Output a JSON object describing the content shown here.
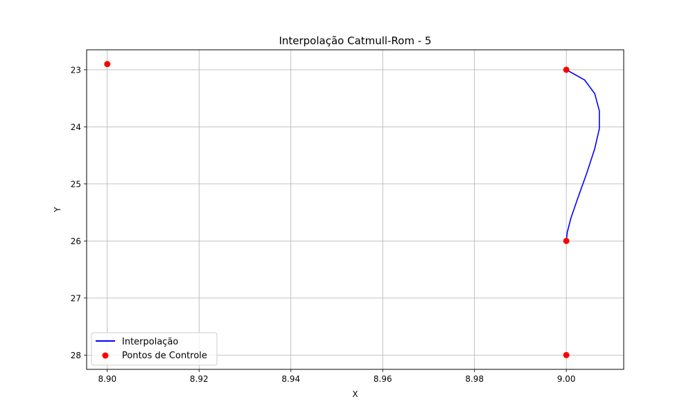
{
  "chart_data": {
    "type": "line",
    "title": "Interpolação Catmull-Rom - 5",
    "xlabel": "X",
    "ylabel": "Y",
    "xlim": [
      8.8955,
      9.0125
    ],
    "ylim": [
      28.25,
      22.65
    ],
    "y_inverted": true,
    "grid": true,
    "x_ticks": [
      8.9,
      8.92,
      8.94,
      8.96,
      8.98,
      9.0
    ],
    "x_tick_labels": [
      "8.90",
      "8.92",
      "8.94",
      "8.96",
      "8.98",
      "9.00"
    ],
    "y_ticks": [
      23,
      24,
      25,
      26,
      27,
      28
    ],
    "y_tick_labels": [
      "23",
      "24",
      "25",
      "26",
      "27",
      "28"
    ],
    "legend_position": "lower-left",
    "series": [
      {
        "name": "Interpolação",
        "kind": "line",
        "color": "#0000ff",
        "x": [
          9.0,
          9.004,
          9.0062,
          9.0072,
          9.0072,
          9.0062,
          9.0045,
          9.0025,
          9.001,
          9.0002,
          9.0
        ],
        "y": [
          23.0,
          23.18,
          23.42,
          23.72,
          24.03,
          24.38,
          24.8,
          25.25,
          25.6,
          25.85,
          26.0
        ]
      },
      {
        "name": "Pontos de Controle",
        "kind": "scatter",
        "color": "#ff0000",
        "x": [
          8.9,
          9.0,
          9.0,
          9.0
        ],
        "y": [
          22.9,
          23.0,
          26.0,
          28.0
        ]
      }
    ]
  }
}
